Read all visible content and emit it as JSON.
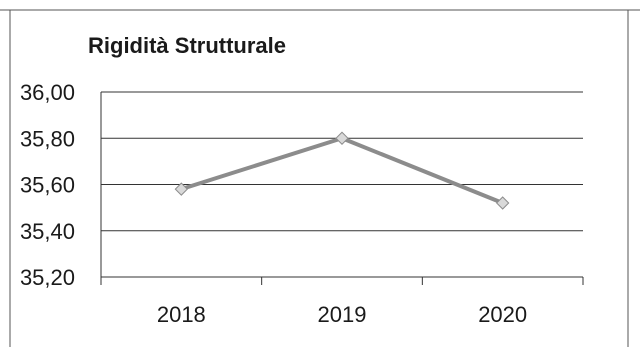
{
  "chart_data": {
    "type": "line",
    "title": "Rigidità Strutturale",
    "xlabel": "",
    "ylabel": "",
    "categories": [
      "2018",
      "2019",
      "2020"
    ],
    "series": [
      {
        "values": [
          35.58,
          35.8,
          35.52
        ]
      }
    ],
    "yticks": [
      "36,00",
      "35,80",
      "35,60",
      "35,40",
      "35,20"
    ],
    "ytick_values": [
      36.0,
      35.8,
      35.6,
      35.4,
      35.2
    ],
    "ylim": [
      35.2,
      36.0
    ],
    "grid": true,
    "legend": "none",
    "colors": {
      "line": "#8c8c8c",
      "marker_fill": "#d9d9d9",
      "marker_stroke": "#8c8c8c",
      "grid": "#333333",
      "text": "#1a1a1a"
    }
  }
}
